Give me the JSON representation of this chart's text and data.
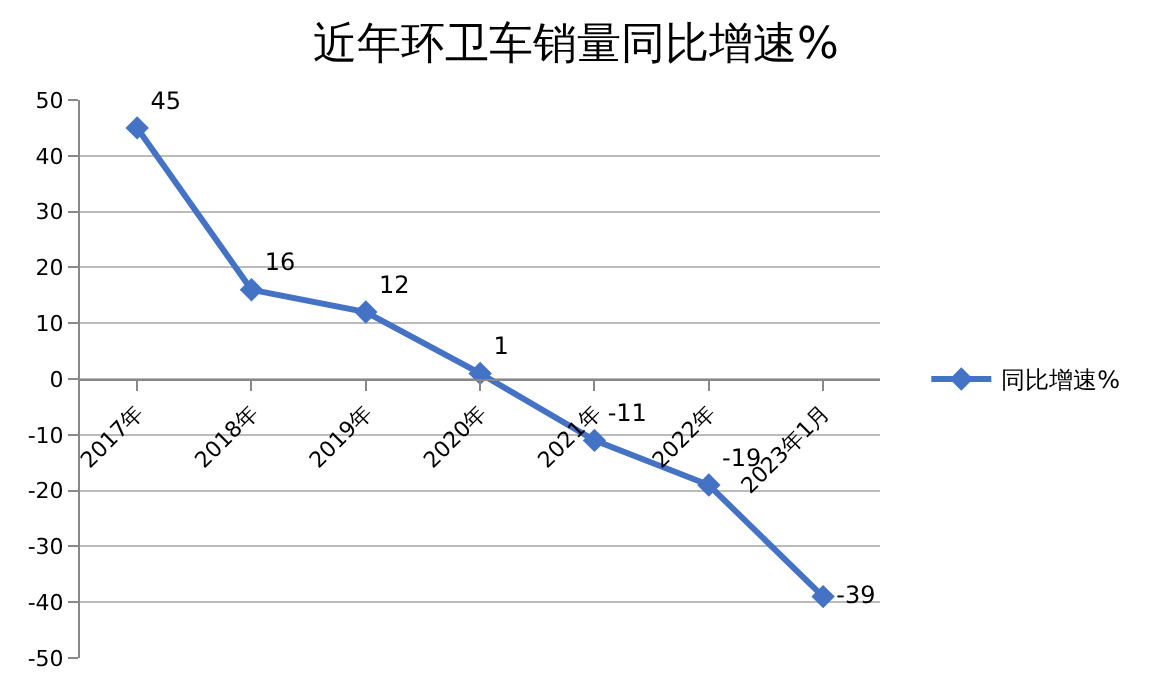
{
  "chart_data": {
    "type": "line",
    "title": "近年环卫车销量同比增速%",
    "categories": [
      "2017年",
      "2018年",
      "2019年",
      "2020年",
      "2021年",
      "2022年",
      "2023年1月"
    ],
    "series": [
      {
        "name": "同比增速%",
        "color": "#4472c4",
        "values": [
          45,
          16,
          12,
          1,
          -11,
          -19,
          -39
        ]
      }
    ],
    "ylim": [
      -50,
      50
    ],
    "yticks": [
      -50,
      -40,
      -30,
      -20,
      -10,
      0,
      10,
      20,
      30,
      40,
      50
    ],
    "grid": "y",
    "legend": "right",
    "marker": "diamond",
    "line_style": "solid",
    "data_labels": true
  }
}
